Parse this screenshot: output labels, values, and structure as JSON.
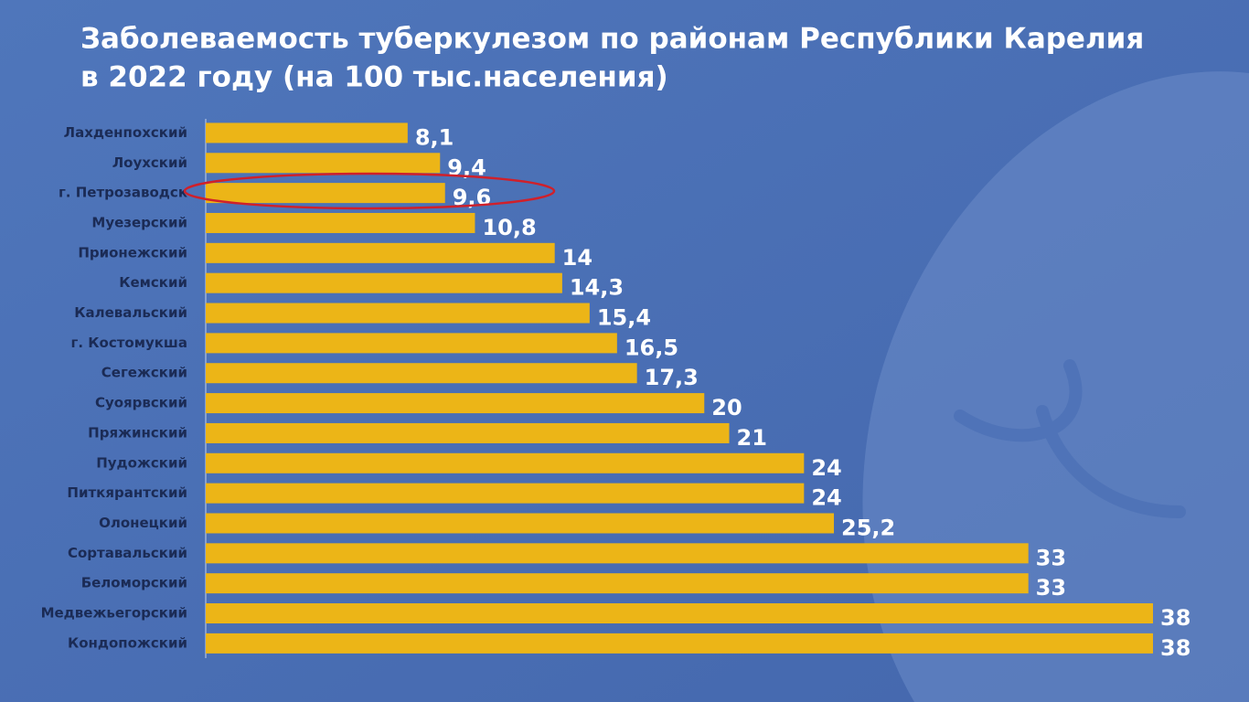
{
  "chart_data": {
    "type": "bar",
    "orientation": "horizontal",
    "title": [
      "Заболеваемость туберкулезом  по районам Республики Карелия",
      "в 2022 году (на 100 тыс.населения)"
    ],
    "categories": [
      "Лахденпохский",
      "Лоухский",
      "г. Петрозаводск",
      "Муезерский",
      "Прионежский",
      "Кемский",
      "Калевальский",
      "г. Костомукша",
      "Сегежский",
      "Суоярвский",
      "Пряжинский",
      "Пудожский",
      "Питкярантский",
      "Олонецкий",
      "Сортавальский",
      "Беломорский",
      "Медвежьегорский",
      "Кондопожский"
    ],
    "values": [
      8.1,
      9.4,
      9.6,
      10.8,
      14,
      14.3,
      15.4,
      16.5,
      17.3,
      20,
      21,
      24,
      24,
      25.2,
      33,
      33,
      38,
      38
    ],
    "value_labels": [
      "8,1",
      "9,4",
      "9,6",
      "10,8",
      "14",
      "14,3",
      "15,4",
      "16,5",
      "17,3",
      "20",
      "21",
      "24",
      "24",
      "25,2",
      "33",
      "33",
      "38",
      "38"
    ],
    "color": "#ecb517"
  }
}
